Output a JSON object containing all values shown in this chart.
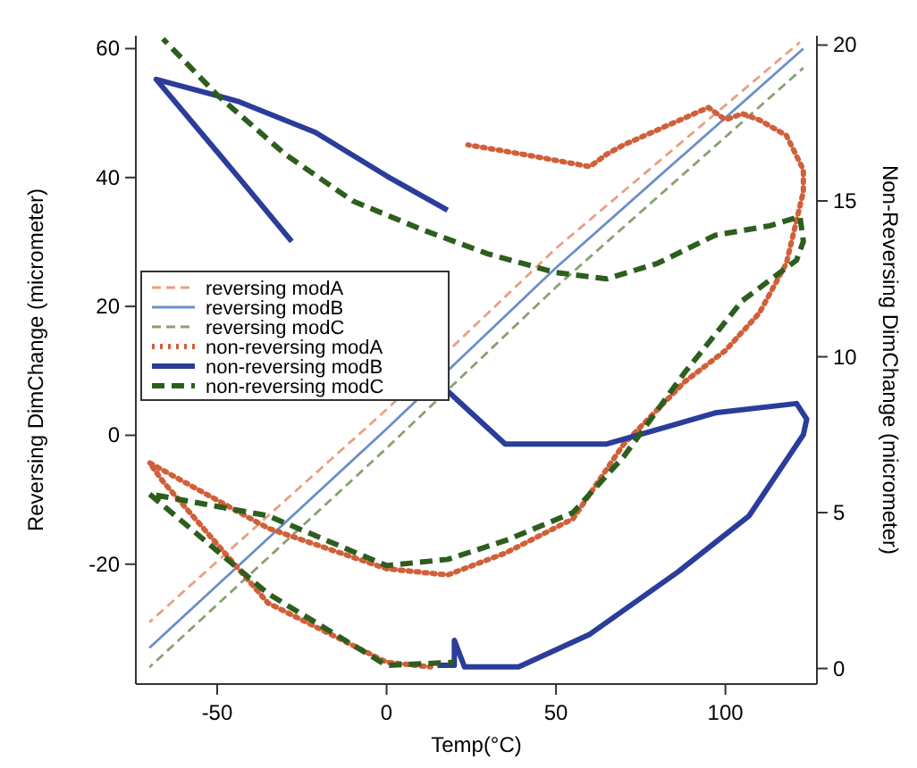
{
  "chart_data": {
    "type": "line",
    "xlabel": "Temp(°C)",
    "ylabel": "Reversing DimChange (micrometer)",
    "y2label": "Non-Reversing DimChange (micrometer)",
    "xlim": [
      -74,
      127
    ],
    "xticks": [
      -50,
      0,
      50,
      100
    ],
    "ylim": [
      -38.6,
      62
    ],
    "yticks": [
      -20,
      0,
      20,
      40,
      60
    ],
    "y2lim": [
      -0.5,
      20.3
    ],
    "y2ticks": [
      0,
      5,
      10,
      15,
      20
    ],
    "legend": "left",
    "grid": false,
    "series": [
      {
        "name": "reversing modA",
        "color": "#e8a080",
        "line_style": "dashed",
        "x": [
          -70,
          0,
          50,
          122
        ],
        "values": [
          -29,
          4,
          29,
          61
        ]
      },
      {
        "name": "reversing modB",
        "color": "#6a8fc8",
        "line_style": "solid",
        "x": [
          -70,
          0,
          50,
          123
        ],
        "values": [
          -33,
          1,
          26,
          60
        ]
      },
      {
        "name": "reversing modC",
        "color": "#8aa070",
        "line_style": "dashed",
        "x": [
          -70,
          0,
          50,
          123
        ],
        "values": [
          -36,
          -2,
          23,
          57
        ]
      },
      {
        "name": "non-reversing modA",
        "color": "#d0603a",
        "line_style": "dotted",
        "axis": "y2",
        "x": [
          24,
          40,
          60,
          65,
          70,
          95,
          100,
          105,
          110,
          118,
          123,
          123,
          118,
          110,
          100,
          88,
          70,
          55,
          35,
          18,
          0,
          -35,
          -70,
          -66,
          -35,
          0,
          13
        ],
        "values": [
          16.8,
          16.5,
          16.1,
          16.5,
          16.8,
          18.0,
          17.6,
          17.8,
          17.6,
          17.1,
          16,
          15.3,
          13.0,
          11.4,
          10.2,
          9.2,
          7.2,
          4.8,
          3.7,
          3.0,
          3.2,
          4.5,
          6.6,
          6.0,
          2.1,
          0.2,
          0.05
        ]
      },
      {
        "name": "non-reversing modB",
        "color": "#2a3d9a",
        "line_style": "solid",
        "axis": "y2",
        "x": [
          18,
          0,
          -21,
          -44,
          -68,
          -44,
          -28,
          -10,
          5,
          18,
          35,
          65,
          97,
          121,
          124,
          123,
          107,
          86,
          60,
          39,
          23,
          20,
          20,
          15
        ],
        "values": [
          14.7,
          15.8,
          17.2,
          18.2,
          18.9,
          15.8,
          13.7,
          null,
          null,
          8.9,
          7.2,
          7.2,
          8.2,
          8.5,
          8.0,
          7.5,
          4.9,
          3.1,
          1.1,
          0.05,
          0.05,
          0.9,
          0.1,
          0.1
        ]
      },
      {
        "name": "non-reversing modC",
        "color": "#2d5e1e",
        "line_style": "dashed",
        "axis": "y2",
        "x": [
          -66,
          -50,
          -30,
          -10,
          10,
          30,
          50,
          65,
          80,
          97,
          113,
          122,
          123,
          121,
          105,
          88,
          70,
          55,
          35,
          18,
          0,
          -35,
          -70,
          -35,
          0,
          20
        ],
        "values": [
          20.2,
          18.4,
          16.5,
          15.0,
          14.1,
          13.3,
          12.7,
          12.5,
          13.0,
          13.9,
          14.2,
          14.5,
          13.7,
          13.1,
          11.8,
          9.5,
          6.8,
          5.0,
          4.1,
          3.5,
          3.3,
          4.9,
          5.6,
          2.4,
          0.1,
          0.2
        ]
      }
    ]
  }
}
